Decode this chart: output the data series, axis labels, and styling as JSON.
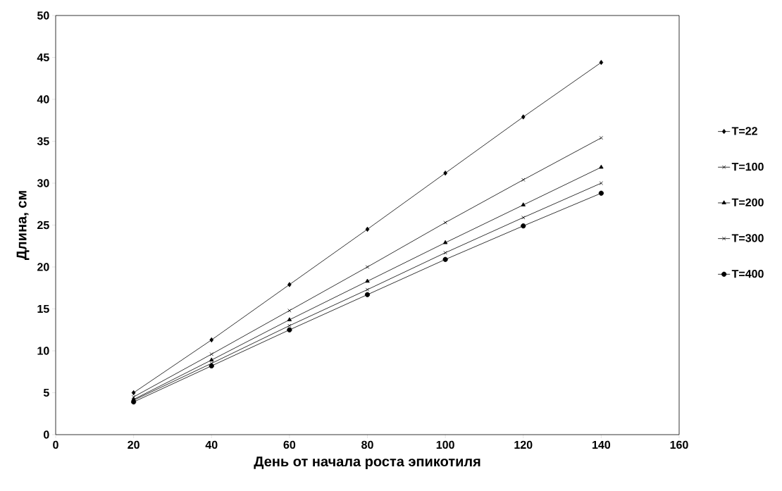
{
  "chart_data": {
    "type": "line",
    "xlabel": "День от начала роста эпикотиля",
    "ylabel": "Длина, см",
    "x": [
      20,
      40,
      60,
      80,
      100,
      120,
      140
    ],
    "series": [
      {
        "name": "T=22",
        "color": "#000000",
        "marker": "diamond",
        "values": [
          5.0,
          11.3,
          17.9,
          24.5,
          31.2,
          37.9,
          44.4
        ]
      },
      {
        "name": "T=100",
        "color": "#000000",
        "marker": "cross",
        "values": [
          4.5,
          9.6,
          14.8,
          20.0,
          25.3,
          30.4,
          35.4
        ]
      },
      {
        "name": "T=200",
        "color": "#000000",
        "marker": "triangle",
        "values": [
          4.2,
          8.9,
          13.7,
          18.3,
          22.9,
          27.4,
          31.9
        ]
      },
      {
        "name": "T=300",
        "color": "#000000",
        "marker": "cross",
        "values": [
          4.1,
          8.5,
          13.0,
          17.3,
          21.7,
          25.9,
          30.0
        ]
      },
      {
        "name": "T=400",
        "color": "#000000",
        "marker": "circle",
        "values": [
          3.9,
          8.2,
          12.5,
          16.7,
          20.9,
          24.9,
          28.8
        ]
      }
    ],
    "xlim": [
      0,
      160
    ],
    "xticks": [
      0,
      20,
      40,
      60,
      80,
      100,
      120,
      140,
      160
    ],
    "ylim": [
      0,
      50
    ],
    "yticks": [
      0,
      5,
      10,
      15,
      20,
      25,
      30,
      35,
      40,
      45,
      50
    ],
    "grid": false,
    "legend": "right",
    "line_style": "solid"
  }
}
